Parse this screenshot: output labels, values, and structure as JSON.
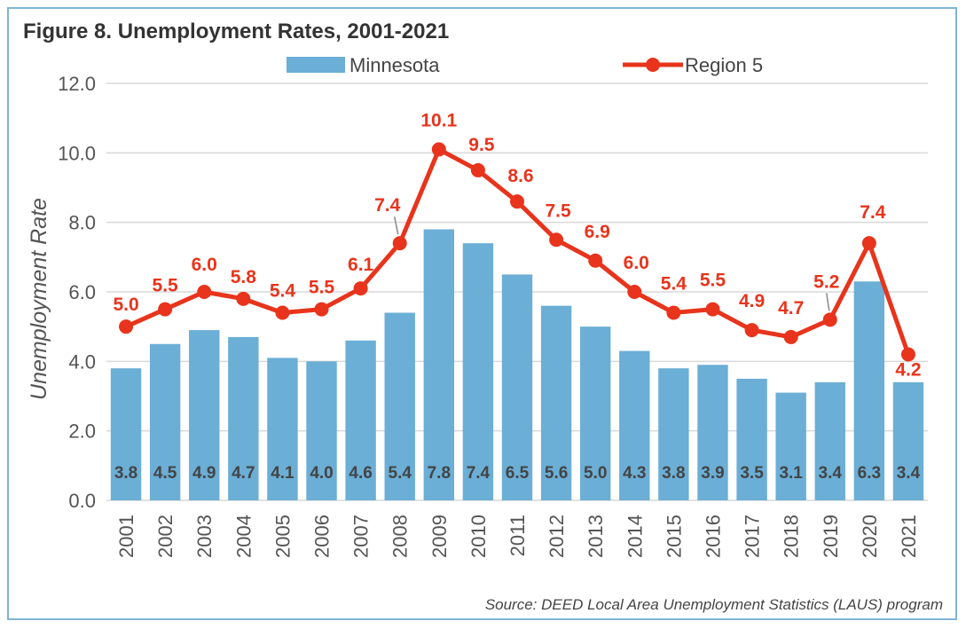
{
  "chart_data": {
    "type": "bar",
    "title": "Figure 8. Unemployment Rates, 2001-2021",
    "xlabel": "",
    "ylabel": "Unemployment Rate",
    "ylim": [
      0,
      12
    ],
    "yticks": [
      "0.0",
      "2.0",
      "4.0",
      "6.0",
      "8.0",
      "10.0",
      "12.0"
    ],
    "grid": true,
    "legend_position": "top",
    "categories": [
      "2001",
      "2002",
      "2003",
      "2004",
      "2005",
      "2006",
      "2007",
      "2008",
      "2009",
      "2010",
      "2011",
      "2012",
      "2013",
      "2014",
      "2015",
      "2016",
      "2017",
      "2018",
      "2019",
      "2020",
      "2021"
    ],
    "series": [
      {
        "name": "Minnesota",
        "kind": "bar",
        "color": "#6baed6",
        "values": [
          3.8,
          4.5,
          4.9,
          4.7,
          4.1,
          4.0,
          4.6,
          5.4,
          7.8,
          7.4,
          6.5,
          5.6,
          5.0,
          4.3,
          3.8,
          3.9,
          3.5,
          3.1,
          3.4,
          6.3,
          3.4
        ],
        "labels": [
          "3.8",
          "4.5",
          "4.9",
          "4.7",
          "4.1",
          "4.0",
          "4.6",
          "5.4",
          "7.8",
          "7.4",
          "6.5",
          "5.6",
          "5.0",
          "4.3",
          "3.8",
          "3.9",
          "3.5",
          "3.1",
          "3.4",
          "6.3",
          "3.4"
        ]
      },
      {
        "name": "Region 5",
        "kind": "line",
        "color": "#e8341c",
        "values": [
          5.0,
          5.5,
          6.0,
          5.8,
          5.4,
          5.5,
          6.1,
          7.4,
          10.1,
          9.5,
          8.6,
          7.5,
          6.9,
          6.0,
          5.4,
          5.5,
          4.9,
          4.7,
          5.2,
          7.4,
          4.2
        ],
        "labels": [
          "5.0",
          "5.5",
          "6.0",
          "5.8",
          "5.4",
          "5.5",
          "6.1",
          "7.4",
          "10.1",
          "9.5",
          "8.6",
          "7.5",
          "6.9",
          "6.0",
          "5.4",
          "5.5",
          "4.9",
          "4.7",
          "5.2",
          "7.4",
          "4.2"
        ]
      }
    ],
    "source": "Source: DEED Local Area Unemployment Statistics (LAUS) program"
  }
}
